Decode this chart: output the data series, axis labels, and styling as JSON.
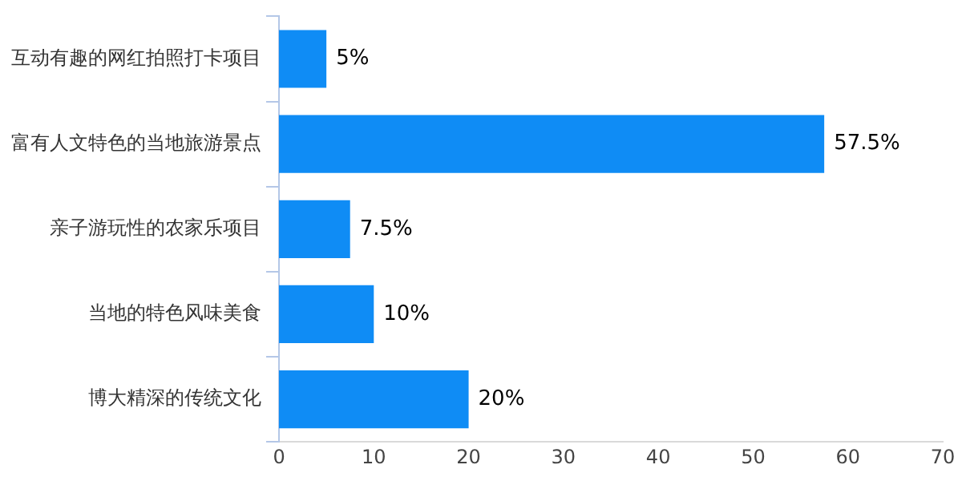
{
  "chart_data": {
    "type": "bar",
    "orientation": "horizontal",
    "categories": [
      "互动有趣的网红拍照打卡项目",
      "富有人文特色的当地旅游景点",
      "亲子游玩性的农家乐项目",
      "当地的特色风味美食",
      "博大精深的传统文化"
    ],
    "values": [
      5,
      57.5,
      7.5,
      10,
      20
    ],
    "color": "#0f8cf5",
    "value_labels": [
      "5%",
      "57.5%",
      "7.5%",
      "10%",
      "20%"
    ],
    "xlim": [
      0,
      70
    ],
    "xticks": [
      0,
      10,
      20,
      30,
      40,
      50,
      60,
      70
    ],
    "grid": false,
    "legend": false
  }
}
